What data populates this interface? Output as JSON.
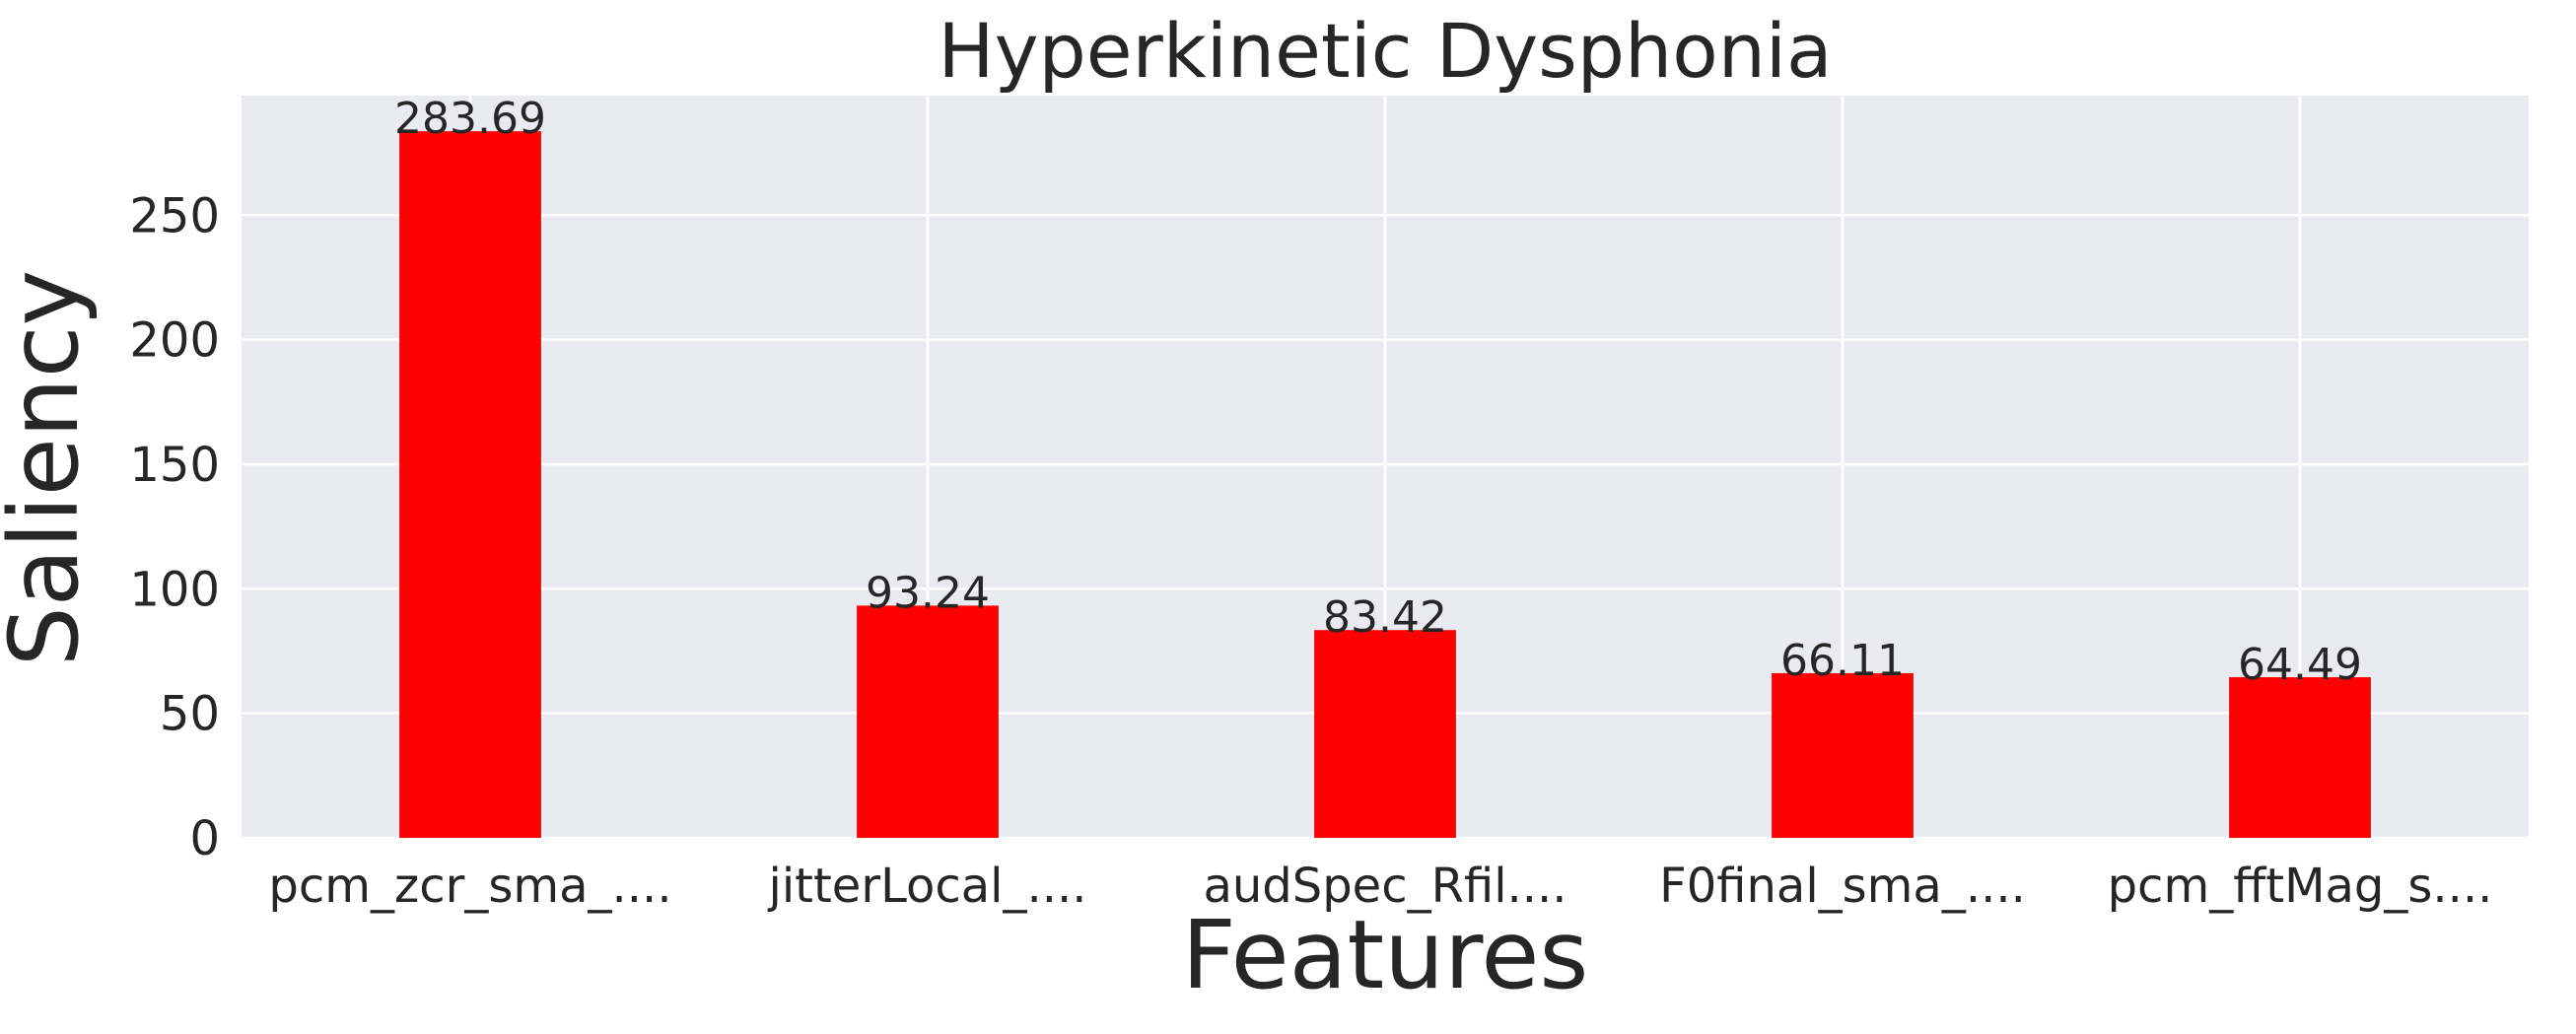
{
  "chart_data": {
    "type": "bar",
    "title": "Hyperkinetic Dysphonia",
    "xlabel": "Features",
    "ylabel": "Saliency",
    "categories": [
      "pcm_zcr_sma_....",
      "jitterLocal_....",
      "audSpec_Rfil....",
      "F0final_sma_....",
      "pcm_fftMag_s...."
    ],
    "values": [
      283.69,
      93.24,
      83.42,
      66.11,
      64.49
    ],
    "value_labels": [
      "283.69",
      "93.24",
      "83.42",
      "66.11",
      "64.49"
    ],
    "yticks": [
      0,
      50,
      100,
      150,
      200,
      250
    ],
    "ylim": [
      0,
      298
    ],
    "grid": true,
    "legend": "none",
    "colors": {
      "bar": "#ff0000",
      "plot_background": "#eaeaf2",
      "grid": "#ffffff",
      "text": "#262626"
    }
  }
}
